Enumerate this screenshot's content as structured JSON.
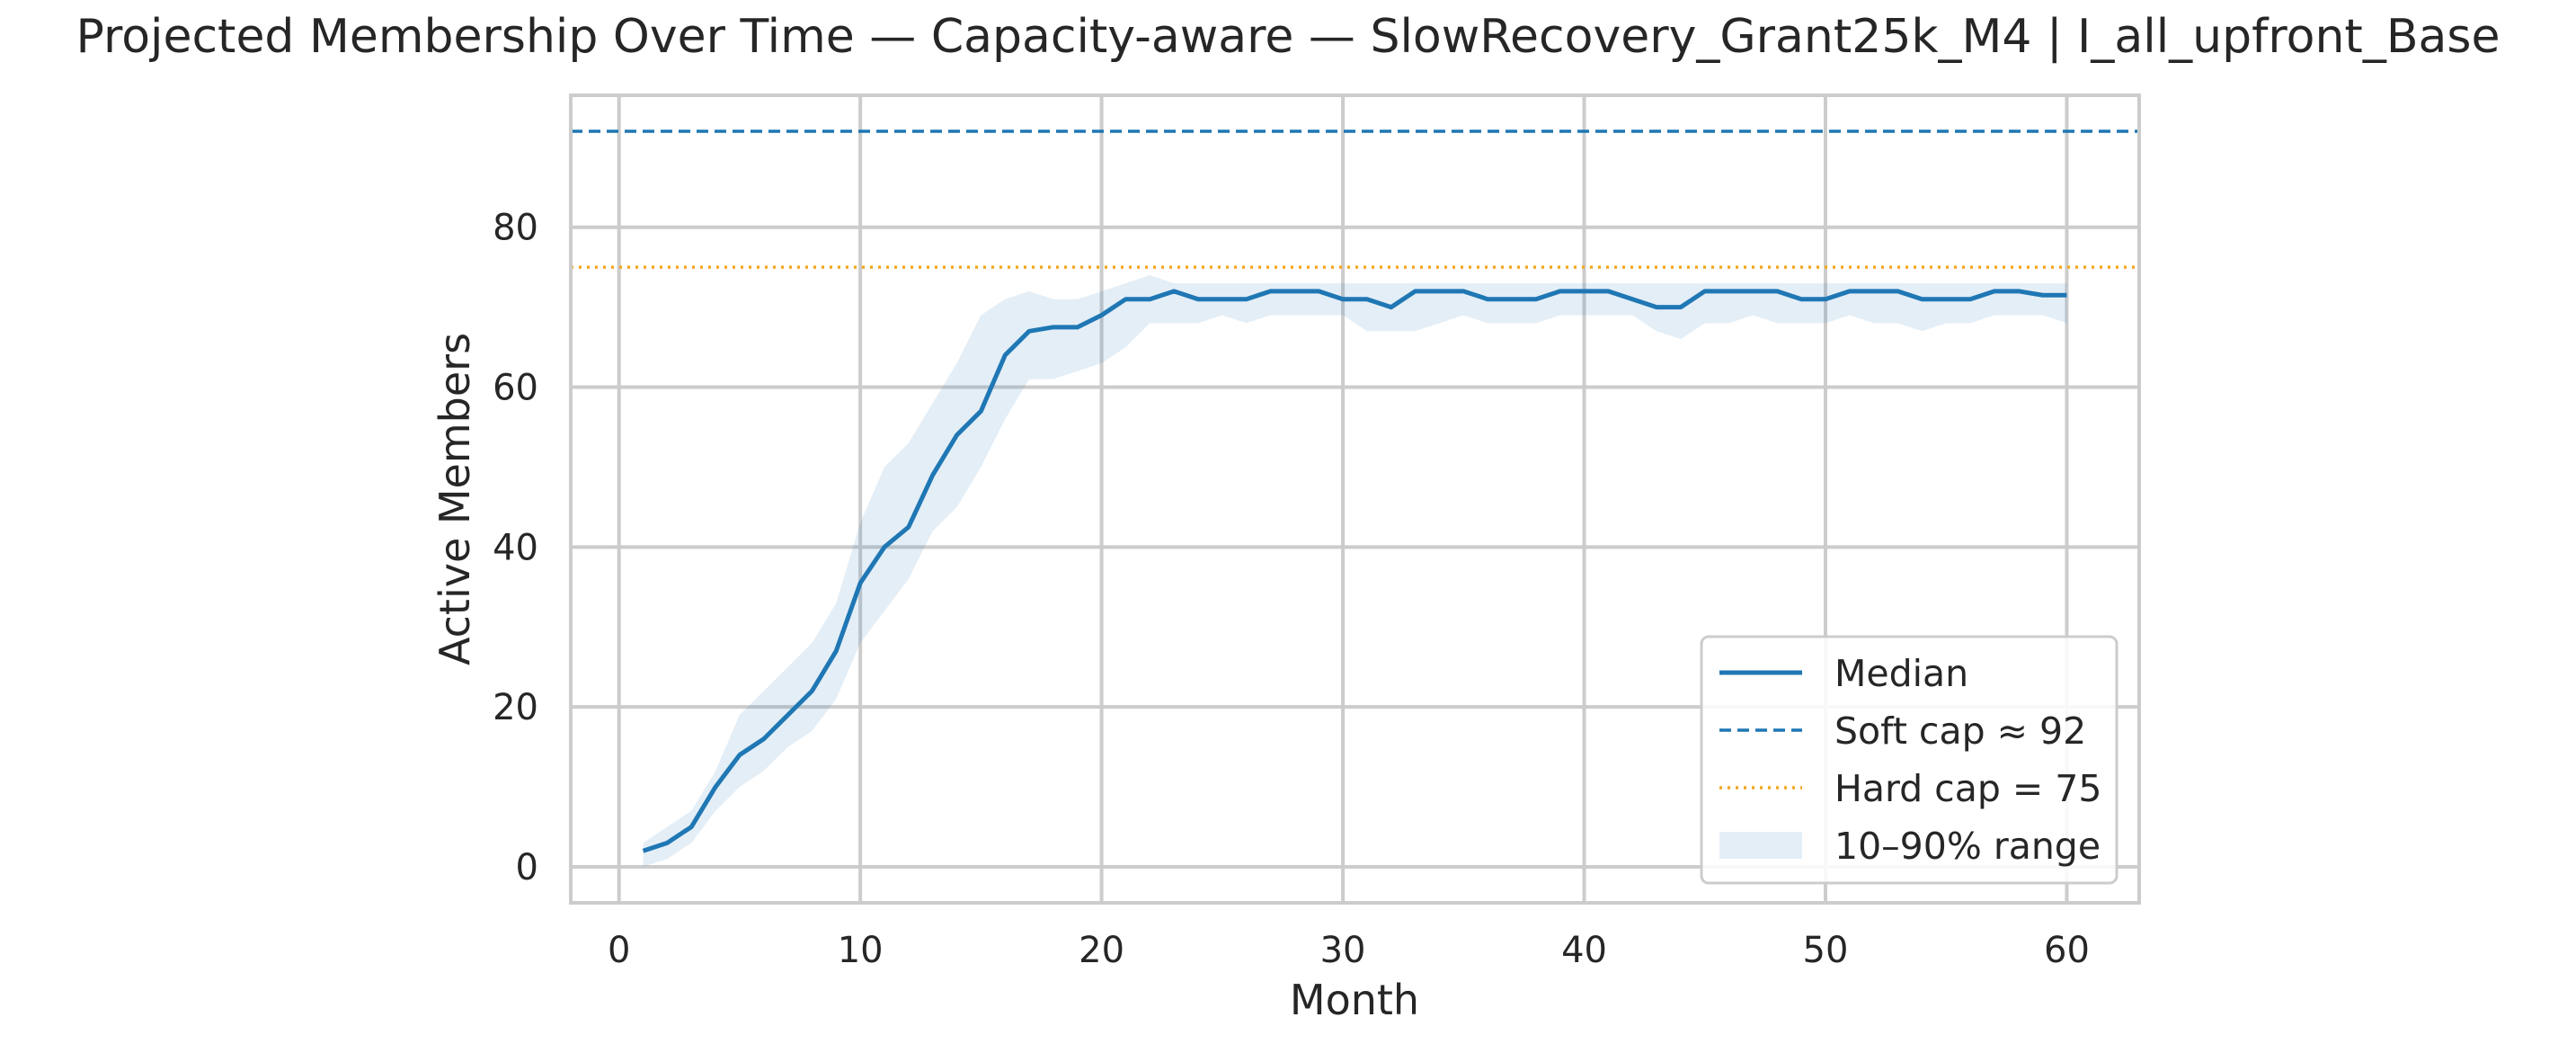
{
  "chart_data": {
    "type": "line",
    "title": "Projected Membership Over Time — Capacity-aware — SlowRecovery_Grant25k_M4 | I_all_upfront_Base",
    "xlabel": "Month",
    "ylabel": "Active Members",
    "xlim": [
      -2,
      63
    ],
    "ylim": [
      -4.5,
      96.5
    ],
    "xticks": [
      0,
      10,
      20,
      30,
      40,
      50,
      60
    ],
    "yticks": [
      0,
      20,
      40,
      60,
      80
    ],
    "grid": true,
    "legend_position": "lower right",
    "series": [
      {
        "name": "Median",
        "kind": "line",
        "color": "#1f77b4",
        "x": [
          1,
          2,
          3,
          4,
          5,
          6,
          7,
          8,
          9,
          10,
          11,
          12,
          13,
          14,
          15,
          16,
          17,
          18,
          19,
          20,
          21,
          22,
          23,
          24,
          25,
          26,
          27,
          28,
          29,
          30,
          31,
          32,
          33,
          34,
          35,
          36,
          37,
          38,
          39,
          40,
          41,
          42,
          43,
          44,
          45,
          46,
          47,
          48,
          49,
          50,
          51,
          52,
          53,
          54,
          55,
          56,
          57,
          58,
          59,
          60
        ],
        "y": [
          2,
          3,
          5,
          10,
          14,
          16,
          19,
          22,
          27,
          35.5,
          40,
          42.5,
          49,
          54,
          57,
          64,
          67,
          67.5,
          67.5,
          69,
          71,
          71,
          72,
          71,
          71,
          71,
          72,
          72,
          72,
          71,
          71,
          70,
          72,
          72,
          72,
          71,
          71,
          71,
          72,
          72,
          72,
          71,
          70,
          70,
          72,
          72,
          72,
          72,
          71,
          71,
          72,
          72,
          72,
          71,
          71,
          71,
          72,
          72,
          71.5,
          71.5
        ]
      },
      {
        "name": "Soft cap ≈ 92",
        "kind": "hline",
        "value": 92,
        "style": "dashed",
        "color": "#1f77b4"
      },
      {
        "name": "Hard cap = 75",
        "kind": "hline",
        "value": 75,
        "style": "dotted",
        "color": "#f5a623"
      },
      {
        "name": "10–90% range",
        "kind": "band",
        "color": "#1f77b4",
        "x": [
          1,
          2,
          3,
          4,
          5,
          6,
          7,
          8,
          9,
          10,
          11,
          12,
          13,
          14,
          15,
          16,
          17,
          18,
          19,
          20,
          21,
          22,
          23,
          24,
          25,
          26,
          27,
          28,
          29,
          30,
          31,
          32,
          33,
          34,
          35,
          36,
          37,
          38,
          39,
          40,
          41,
          42,
          43,
          44,
          45,
          46,
          47,
          48,
          49,
          50,
          51,
          52,
          53,
          54,
          55,
          56,
          57,
          58,
          59,
          60
        ],
        "lower": [
          0,
          1,
          3,
          7,
          10,
          12,
          15,
          17,
          21,
          28,
          32,
          36,
          42,
          45,
          50,
          56,
          61,
          61,
          62,
          63,
          65,
          68,
          68,
          68,
          69,
          68,
          69,
          69,
          69,
          69,
          67,
          67,
          67,
          68,
          69,
          68,
          68,
          68,
          69,
          69,
          69,
          69,
          67,
          66,
          68,
          68,
          69,
          68,
          68,
          68,
          69,
          68,
          68,
          67,
          68,
          68,
          69,
          69,
          69,
          68
        ],
        "upper": [
          3,
          5,
          7,
          12,
          19,
          22,
          25,
          28,
          33,
          43,
          50,
          53,
          58,
          63,
          69,
          71,
          72,
          71,
          71,
          72,
          73,
          74,
          73,
          73,
          73,
          73,
          73,
          73,
          73,
          73,
          73,
          73,
          73,
          73,
          73,
          73,
          73,
          73,
          73,
          73,
          73,
          73,
          73,
          73,
          73,
          73,
          73,
          73,
          73,
          73,
          73,
          73,
          73,
          73,
          73,
          73,
          73,
          73,
          73,
          73
        ]
      }
    ],
    "legend": [
      {
        "label": "Median",
        "style": "solid"
      },
      {
        "label": "Soft cap ≈ 92",
        "style": "dashed"
      },
      {
        "label": "Hard cap = 75",
        "style": "dotted"
      },
      {
        "label": "10–90% range",
        "style": "band"
      }
    ]
  }
}
